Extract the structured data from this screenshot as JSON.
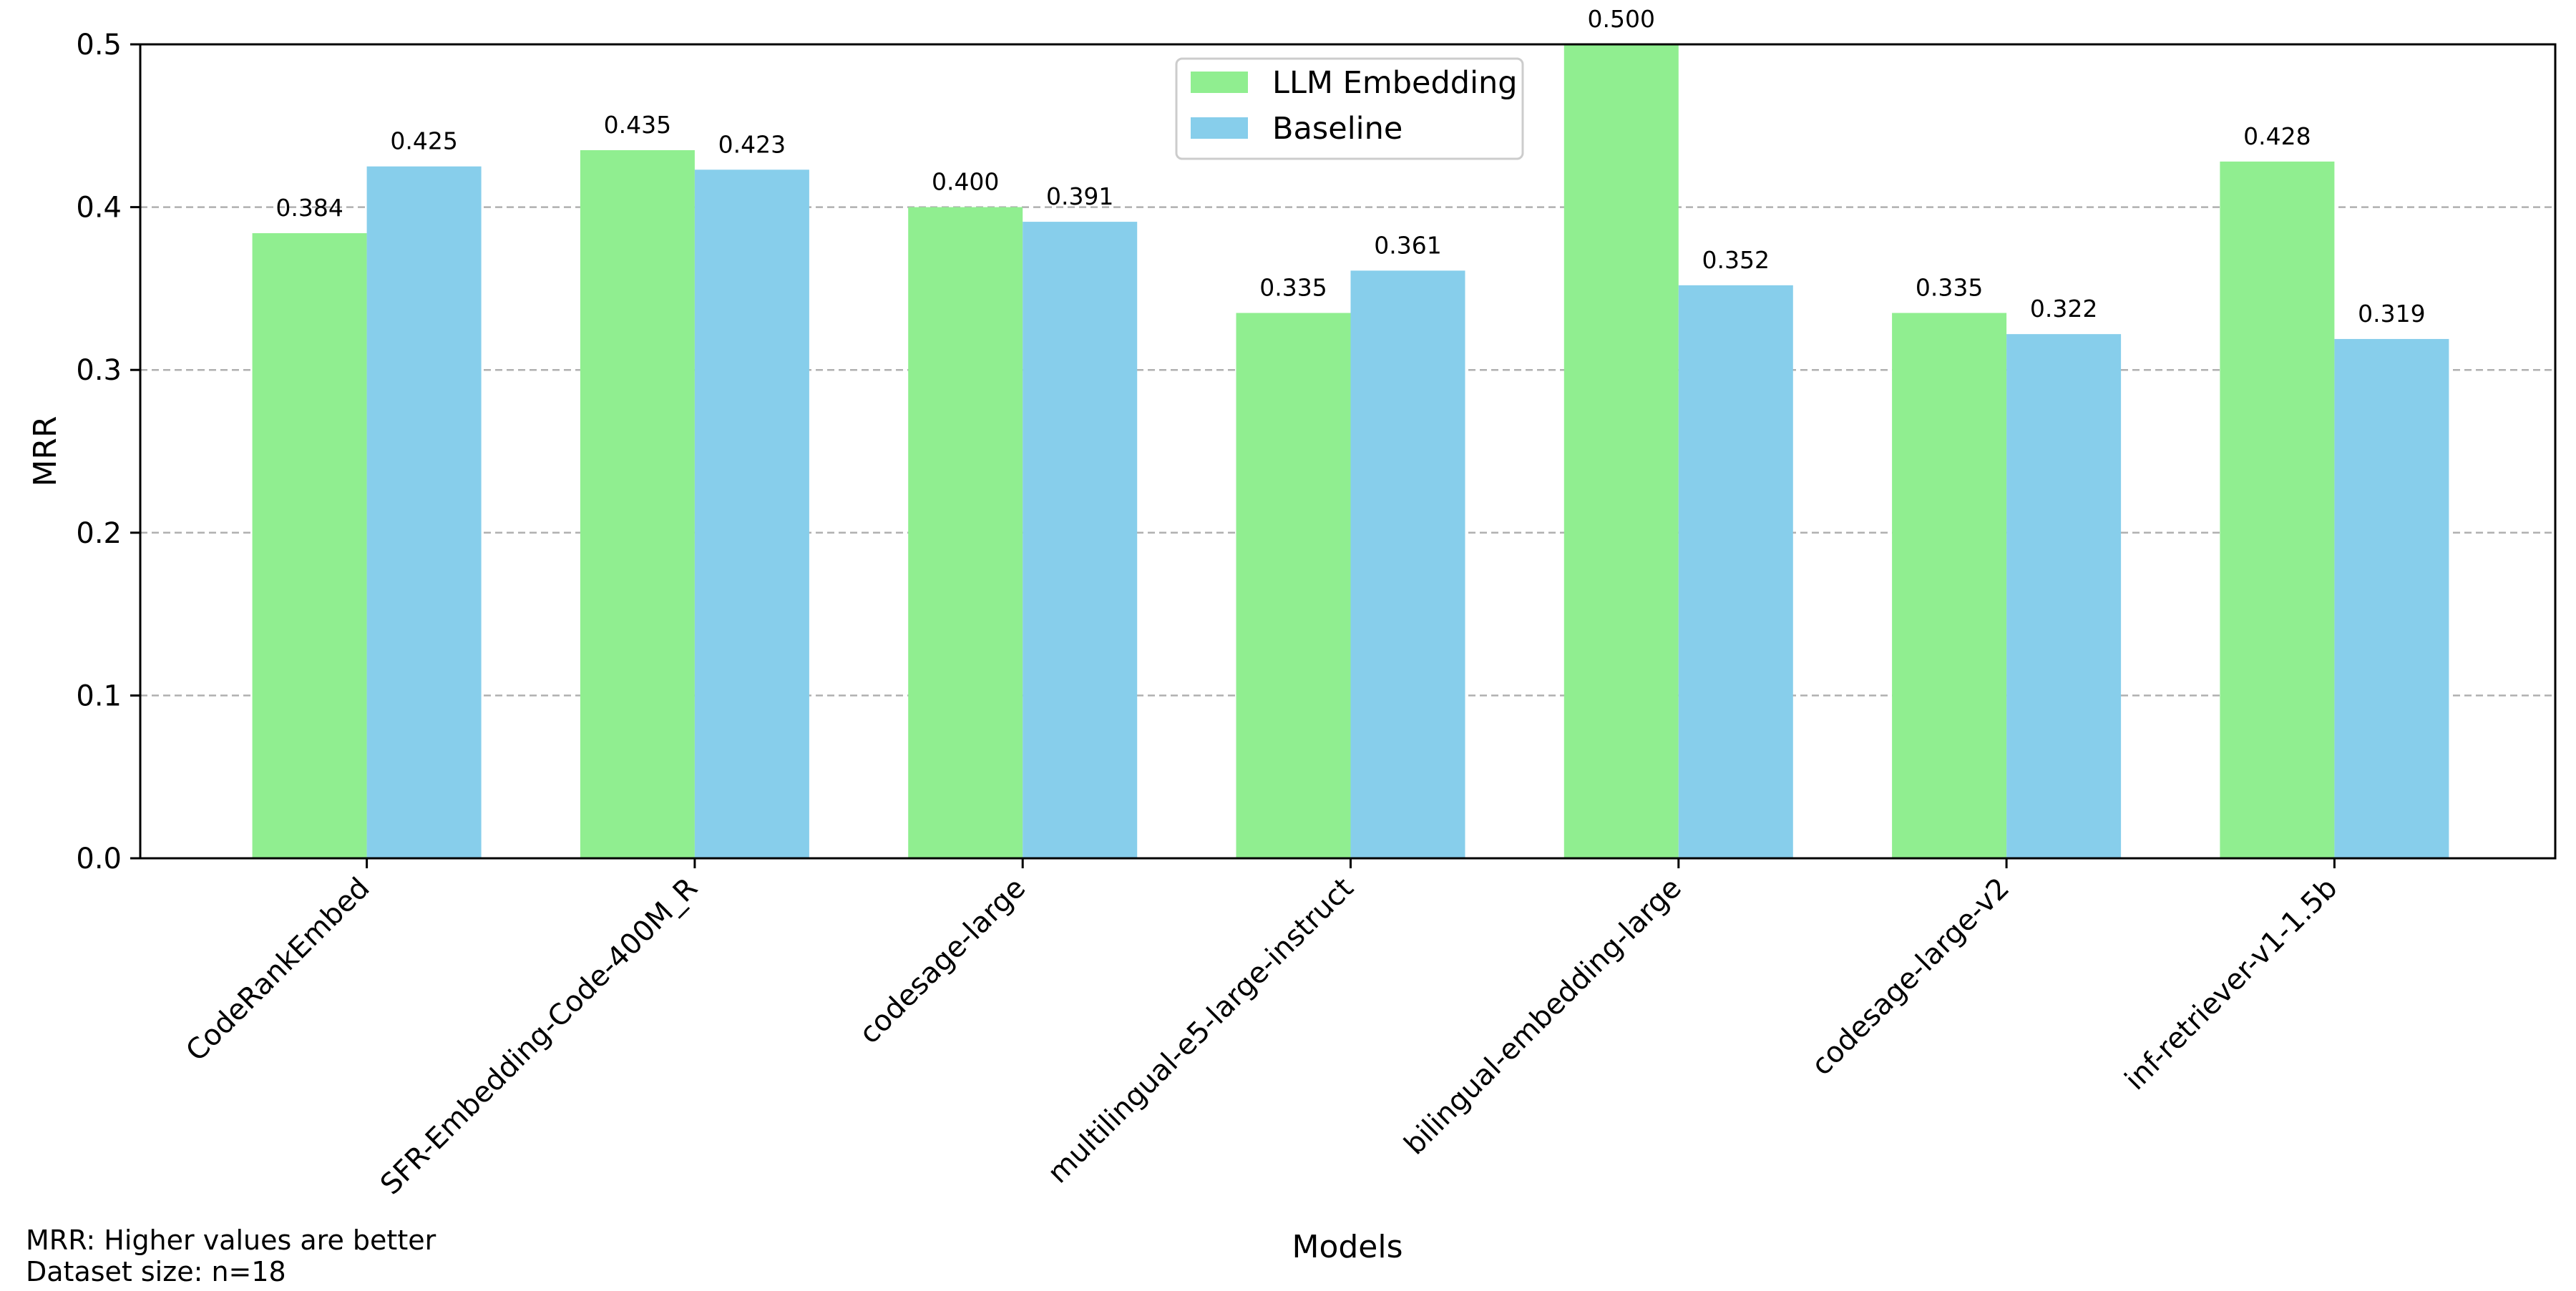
{
  "chart_data": {
    "type": "bar",
    "xlabel": "Models",
    "ylabel": "MRR",
    "ylim": [
      0,
      0.5
    ],
    "yticks": [
      0.0,
      0.1,
      0.2,
      0.3,
      0.4,
      0.5
    ],
    "ytick_labels": [
      "0.0",
      "0.1",
      "0.2",
      "0.3",
      "0.4",
      "0.5"
    ],
    "grid": "y-dashed",
    "legend_position": "upper-center",
    "categories": [
      "CodeRankEmbed",
      "SFR-Embedding-Code-400M_R",
      "codesage-large",
      "multilingual-e5-large-instruct",
      "bilingual-embedding-large",
      "codesage-large-v2",
      "inf-retriever-v1-1.5b"
    ],
    "series": [
      {
        "name": "LLM Embedding",
        "color": "#90ee90",
        "values": [
          0.384,
          0.435,
          0.4,
          0.335,
          0.5,
          0.335,
          0.428
        ],
        "labels": [
          "0.384",
          "0.435",
          "0.400",
          "0.335",
          "0.500",
          "0.335",
          "0.428"
        ]
      },
      {
        "name": "Baseline",
        "color": "#87ceeb",
        "values": [
          0.425,
          0.423,
          0.391,
          0.361,
          0.352,
          0.322,
          0.319
        ],
        "labels": [
          "0.425",
          "0.423",
          "0.391",
          "0.361",
          "0.352",
          "0.322",
          "0.319"
        ]
      }
    ]
  },
  "notes": {
    "line1": "MRR: Higher values are better",
    "line2": "Dataset size: n=18"
  }
}
